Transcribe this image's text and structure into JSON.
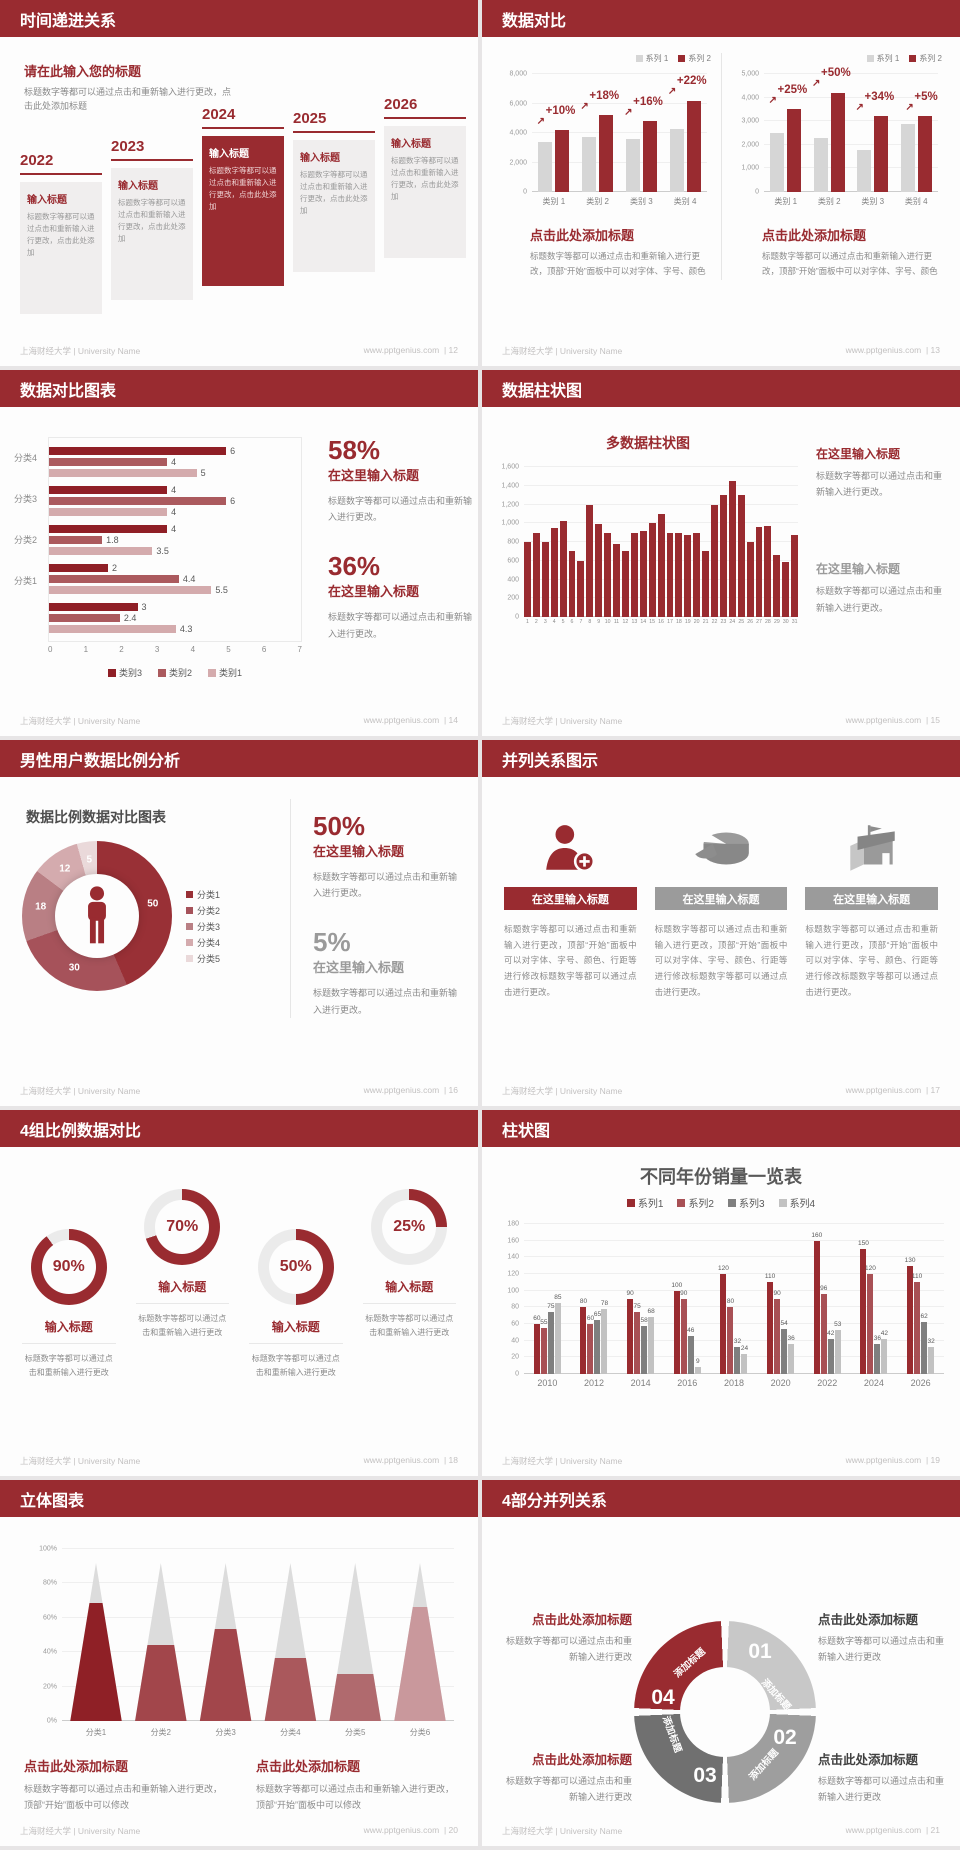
{
  "colors": {
    "brand": "#992b30",
    "red_mid": "#a85055",
    "red_light": "#c08487",
    "pink": "#d4abad",
    "bar_gray": "#d6d6d6",
    "gray_dark": "#7f7f7f",
    "gray_light": "#c2c2c2"
  },
  "footer": {
    "university": "上海财经大学 | University Name",
    "site": "www.pptgenius.com"
  },
  "slides": {
    "s12": {
      "header": "时间递进关系",
      "page": "12",
      "intro_title": "请在此输入您的标题",
      "intro_body": "标题数字等都可以通过点击和重新输入进行更改，点击此处添加标题",
      "card_title": "输入标题",
      "card_body": "标题数字等都可以通过点击和重新输入进行更改，点击此处添加",
      "years": [
        "2022",
        "2023",
        "2024",
        "2025",
        "2026"
      ],
      "highlight_index": 2
    },
    "s13": {
      "header": "数据对比",
      "page": "13",
      "legend": [
        {
          "label": "系列 1",
          "color": "#d6d6d6"
        },
        {
          "label": "系列 2",
          "color": "#992b30"
        }
      ],
      "charts": [
        {
          "type": "bar",
          "ymax": 8000,
          "yticks": [
            "8,000",
            "6,000",
            "4,000",
            "2,000",
            "0"
          ],
          "categories": [
            "类别 1",
            "类别 2",
            "类别 3",
            "类别 4"
          ],
          "series": [
            {
              "name": "系列 1",
              "color": "#d6d6d6",
              "values": [
                3400,
                3700,
                3600,
                4300
              ]
            },
            {
              "name": "系列 2",
              "color": "#992b30",
              "values": [
                4200,
                5200,
                4800,
                6200
              ]
            }
          ],
          "annotations": [
            "+10%",
            "+18%",
            "+16%",
            "+22%"
          ]
        },
        {
          "type": "bar",
          "ymax": 5000,
          "yticks": [
            "5,000",
            "4,000",
            "3,000",
            "2,000",
            "1,000",
            "0"
          ],
          "categories": [
            "类别 1",
            "类别 2",
            "类别 3",
            "类别 4"
          ],
          "series": [
            {
              "name": "系列 1",
              "color": "#d6d6d6",
              "values": [
                2500,
                2300,
                1800,
                2900
              ]
            },
            {
              "name": "系列 2",
              "color": "#992b30",
              "values": [
                3500,
                4200,
                3200,
                3200
              ]
            }
          ],
          "annotations": [
            "+25%",
            "+50%",
            "+34%",
            "+5%"
          ]
        }
      ],
      "block_title": "点击此处添加标题",
      "block_body": "标题数字等都可以通过点击和重新输入进行更改，顶部“开始”面板中可以对字体、字号、颜色"
    },
    "s14": {
      "header": "数据对比图表",
      "page": "14",
      "chart": {
        "type": "bar",
        "xmax": 7,
        "xticks": [
          "0",
          "1",
          "2",
          "3",
          "4",
          "5",
          "6",
          "7"
        ],
        "legend": [
          {
            "label": "类别3",
            "color": "#8f1f26"
          },
          {
            "label": "类别2",
            "color": "#ab5a5e"
          },
          {
            "label": "类别1",
            "color": "#d4abad"
          }
        ],
        "groups": [
          {
            "label": "分类4",
            "values": [
              6,
              4,
              5
            ]
          },
          {
            "label": "分类3",
            "values": [
              4,
              6,
              4
            ]
          },
          {
            "label": "分类2",
            "values": [
              4,
              1.8,
              3.5
            ]
          },
          {
            "label": "分类1",
            "values": [
              2,
              4.4,
              5.5
            ]
          },
          {
            "label": "",
            "values": [
              3,
              2.4,
              4.3
            ]
          }
        ]
      },
      "stats": [
        {
          "pct": "58%",
          "title": "在这里输入标题",
          "body": "标题数字等都可以通过点击和重新输入进行更改。"
        },
        {
          "pct": "36%",
          "title": "在这里输入标题",
          "body": "标题数字等都可以通过点击和重新输入进行更改。"
        }
      ]
    },
    "s15": {
      "header": "数据柱状图",
      "page": "15",
      "chart": {
        "type": "bar",
        "title": "多数据柱状图",
        "ymax": 1600,
        "yticks": [
          "1,600",
          "1,400",
          "1,200",
          "1,000",
          "800",
          "600",
          "400",
          "200",
          "0"
        ],
        "xlabels": [
          "1",
          "2",
          "3",
          "4",
          "5",
          "6",
          "7",
          "8",
          "9",
          "10",
          "11",
          "12",
          "13",
          "14",
          "15",
          "16",
          "17",
          "18",
          "19",
          "20",
          "21",
          "22",
          "23",
          "24",
          "25",
          "26",
          "27",
          "28",
          "29",
          "30",
          "31"
        ],
        "values": [
          800,
          900,
          800,
          950,
          1020,
          700,
          600,
          1200,
          990,
          900,
          780,
          700,
          900,
          920,
          1000,
          1100,
          900,
          900,
          880,
          900,
          700,
          1200,
          1300,
          1450,
          1300,
          800,
          960,
          970,
          660,
          590,
          870
        ]
      },
      "blocks": [
        {
          "title": "在这里输入标题",
          "body": "标题数字等都可以通过点击和重新输入进行更改。"
        },
        {
          "title": "在这里输入标题",
          "body": "标题数字等都可以通过点击和重新输入进行更改。"
        }
      ]
    },
    "s16": {
      "header": "男性用户数据比例分析",
      "page": "16",
      "chart_title": "数据比例数据对比图表",
      "chart": {
        "type": "pie",
        "slices": [
          {
            "label": "分类1",
            "value": 50,
            "color": "#993036"
          },
          {
            "label": "分类2",
            "value": 30,
            "color": "#a6525a"
          },
          {
            "label": "分类3",
            "value": 18,
            "color": "#b97f84"
          },
          {
            "label": "分类4",
            "value": 12,
            "color": "#d4abae"
          },
          {
            "label": "分类5",
            "value": 5,
            "color": "#ead9da"
          }
        ]
      },
      "stats": [
        {
          "pct": "50%",
          "title": "在这里输入标题",
          "body": "标题数字等都可以通过点击和重新输入进行更改。"
        },
        {
          "pct": "5%",
          "title": "在这里输入标题",
          "body": "标题数字等都可以通过点击和重新输入进行更改。"
        }
      ]
    },
    "s17": {
      "header": "并列关系图示",
      "page": "17",
      "columns": [
        {
          "icon": "woman-plus",
          "title": "在这里输入标题",
          "body": "标题数字等都可以通过点击和重新输入进行更改，顶部“开始”面板中可以对字体、字号、颜色、行距等进行修改标题数字等都可以通过点击进行更改。"
        },
        {
          "icon": "pie-cheese",
          "title": "在这里输入标题",
          "body": "标题数字等都可以通过点击和重新输入进行更改，顶部“开始”面板中可以对字体、字号、颜色、行距等进行修改标题数字等都可以通过点击进行更改。"
        },
        {
          "icon": "shop-building",
          "title": "在这里输入标题",
          "body": "标题数字等都可以通过点击和重新输入进行更改，顶部“开始”面板中可以对字体、字号、颜色、行距等进行修改标题数字等都可以通过点击进行更改。"
        }
      ]
    },
    "s18": {
      "header": "4组比例数据对比",
      "page": "18",
      "item_title": "输入标题",
      "item_body": "标题数字等都可以通过点击和重新输入进行更改",
      "rings": [
        {
          "pct": 90,
          "label": "90%",
          "raised": false
        },
        {
          "pct": 70,
          "label": "70%",
          "raised": true
        },
        {
          "pct": 50,
          "label": "50%",
          "raised": false
        },
        {
          "pct": 25,
          "label": "25%",
          "raised": true
        }
      ]
    },
    "s19": {
      "header": "柱状图",
      "page": "19",
      "chart": {
        "type": "bar",
        "title": "不同年份销量一览表",
        "ymax": 180,
        "yticks": [
          "180",
          "160",
          "140",
          "120",
          "100",
          "80",
          "60",
          "40",
          "20",
          "0"
        ],
        "categories": [
          "2010",
          "2012",
          "2014",
          "2016",
          "2018",
          "2020",
          "2022",
          "2024",
          "2026"
        ],
        "series": [
          {
            "name": "系列1",
            "color": "#992b30",
            "values": [
              60,
              80,
              90,
              100,
              120,
              110,
              160,
              150,
              130
            ]
          },
          {
            "name": "系列2",
            "color": "#a85055",
            "values": [
              55,
              60,
              75,
              90,
              80,
              90,
              96,
              120,
              110
            ]
          },
          {
            "name": "系列3",
            "color": "#7f7f7f",
            "values": [
              75,
              65,
              58,
              46,
              32,
              54,
              42,
              36,
              62
            ]
          },
          {
            "name": "系列4",
            "color": "#c2c2c2",
            "values": [
              85,
              78,
              68,
              9,
              24,
              36,
              53,
              42,
              32
            ]
          }
        ]
      }
    },
    "s20": {
      "header": "立体图表",
      "page": "20",
      "chart": {
        "type": "bar",
        "yticks": [
          "100%",
          "80%",
          "60%",
          "40%",
          "20%",
          "0%"
        ],
        "pyramids": [
          {
            "label": "分类1",
            "fill": 75,
            "color": "#8f2026"
          },
          {
            "label": "分类2",
            "fill": 48,
            "color": "#a2464b"
          },
          {
            "label": "分类3",
            "fill": 58,
            "color": "#a2464b"
          },
          {
            "label": "分类4",
            "fill": 40,
            "color": "#aa585c"
          },
          {
            "label": "分类5",
            "fill": 30,
            "color": "#b06a6e"
          },
          {
            "label": "分类6",
            "fill": 72,
            "color": "#c9989c"
          }
        ]
      },
      "blocks": [
        {
          "title": "点击此处添加标题",
          "body": "标题数字等都可以通过点击和重新输入进行更改，顶部“开始”面板中可以修改"
        },
        {
          "title": "点击此处添加标题",
          "body": "标题数字等都可以通过点击和重新输入进行更改，顶部“开始”面板中可以修改"
        }
      ]
    },
    "s21": {
      "header": "4部分并列关系",
      "page": "21",
      "segments": [
        {
          "num": "01",
          "label": "添加标题",
          "color": "#c8c8c8"
        },
        {
          "num": "02",
          "label": "添加标题",
          "color": "#9e9e9e"
        },
        {
          "num": "03",
          "label": "添加标题",
          "color": "#707070"
        },
        {
          "num": "04",
          "label": "添加标题",
          "color": "#992b30"
        }
      ],
      "blocks": [
        {
          "title": "点击此处添加标题",
          "body": "标题数字等都可以通过点击和重新输入进行更改"
        },
        {
          "title": "点击此处添加标题",
          "body": "标题数字等都可以通过点击和重新输入进行更改"
        },
        {
          "title": "点击此处添加标题",
          "body": "标题数字等都可以通过点击和重新输入进行更改"
        },
        {
          "title": "点击此处添加标题",
          "body": "标题数字等都可以通过点击和重新输入进行更改"
        }
      ]
    }
  }
}
